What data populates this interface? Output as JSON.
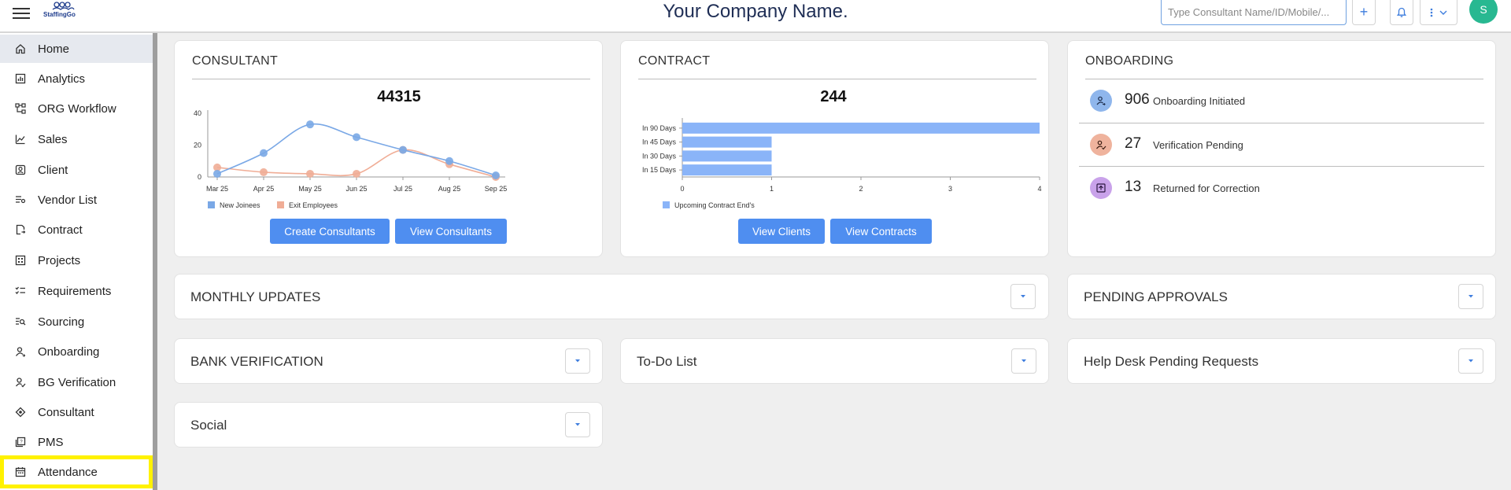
{
  "header": {
    "company_title": "Your Company Name.",
    "logo_text": "StaffingGo",
    "search_placeholder": "Type Consultant Name/ID/Mobile/...",
    "add_label": "+",
    "avatar_initial": "S"
  },
  "sidebar": {
    "items": [
      {
        "label": "Home",
        "icon": "home-icon"
      },
      {
        "label": "Analytics",
        "icon": "analytics-icon"
      },
      {
        "label": "ORG Workflow",
        "icon": "workflow-icon"
      },
      {
        "label": "Sales",
        "icon": "sales-icon"
      },
      {
        "label": "Client",
        "icon": "client-icon"
      },
      {
        "label": "Vendor List",
        "icon": "vendor-list-icon"
      },
      {
        "label": "Contract",
        "icon": "contract-icon"
      },
      {
        "label": "Projects",
        "icon": "projects-icon"
      },
      {
        "label": "Requirements",
        "icon": "requirements-icon"
      },
      {
        "label": "Sourcing",
        "icon": "sourcing-icon"
      },
      {
        "label": "Onboarding",
        "icon": "onboarding-icon"
      },
      {
        "label": "BG Verification",
        "icon": "bg-verification-icon"
      },
      {
        "label": "Consultant",
        "icon": "consultant-icon"
      },
      {
        "label": "PMS",
        "icon": "pms-icon"
      },
      {
        "label": "Attendance",
        "icon": "attendance-icon"
      }
    ]
  },
  "consultant_card": {
    "title": "CONSULTANT",
    "total": "44315",
    "create_button": "Create Consultants",
    "view_button": "View Consultants"
  },
  "contract_card": {
    "title": "CONTRACT",
    "total": "244",
    "view_clients_button": "View Clients",
    "view_contracts_button": "View Contracts"
  },
  "onboarding_card": {
    "title": "ONBOARDING",
    "rows": [
      {
        "count": "906",
        "label": "Onboarding Initiated",
        "color": "#8fb6ec"
      },
      {
        "count": "27",
        "label": "Verification Pending",
        "color": "#efb39d"
      },
      {
        "count": "13",
        "label": "Returned for Correction",
        "color": "#c9a2ea"
      }
    ]
  },
  "sections": {
    "monthly_updates": "MONTHLY UPDATES",
    "pending_approvals": "PENDING APPROVALS",
    "bank_verification": "BANK VERIFICATION",
    "todo_list": "To-Do List",
    "help_desk": "Help Desk Pending Requests",
    "social": "Social"
  },
  "chart_data": [
    {
      "type": "line",
      "x": [
        "Mar 25",
        "Apr 25",
        "May 25",
        "Jun 25",
        "Jul 25",
        "Aug 25",
        "Sep 25"
      ],
      "series": [
        {
          "name": "New Joinees",
          "values": [
            2,
            15,
            33,
            25,
            17,
            10,
            1
          ],
          "color": "#7aa8e6"
        },
        {
          "name": "Exit Employees",
          "values": [
            6,
            3,
            2,
            2,
            17,
            8,
            0
          ],
          "color": "#f0ad96"
        }
      ],
      "yticks": [
        0,
        20,
        40
      ],
      "ylim": [
        0,
        40
      ]
    },
    {
      "type": "bar",
      "orientation": "horizontal",
      "categories": [
        "In 90 Days",
        "In 45 Days",
        "In 30 Days",
        "In 15 Days"
      ],
      "series": [
        {
          "name": "Upcoming Contract End's",
          "values": [
            4,
            1,
            1,
            1
          ],
          "color": "#8ab4f8"
        }
      ],
      "xticks": [
        0,
        1,
        2,
        3,
        4
      ],
      "xlim": [
        0,
        4
      ]
    }
  ]
}
